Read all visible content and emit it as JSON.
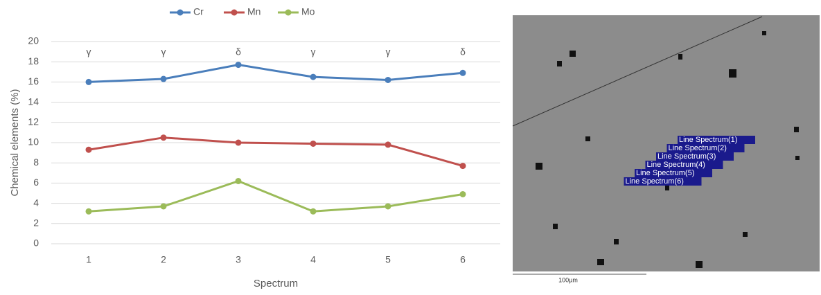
{
  "chart_data": {
    "type": "line",
    "ylabel": "Chemical elements (%)",
    "xlabel": "Spectrum",
    "categories": [
      "1",
      "2",
      "3",
      "4",
      "5",
      "6"
    ],
    "annotations": [
      "γ",
      "γ",
      "δ",
      "γ",
      "γ",
      "δ"
    ],
    "series": [
      {
        "name": "Cr",
        "color": "#4a7ebb",
        "values": [
          16.0,
          16.3,
          17.7,
          16.5,
          16.2,
          16.9
        ]
      },
      {
        "name": "Mn",
        "color": "#c0504d",
        "values": [
          9.3,
          10.5,
          10.0,
          9.9,
          9.8,
          7.7
        ]
      },
      {
        "name": "Mo",
        "color": "#9bbb59",
        "values": [
          3.2,
          3.7,
          6.2,
          3.2,
          3.7,
          4.9
        ]
      }
    ],
    "ylim": [
      0,
      20
    ],
    "yticks": [
      0,
      2,
      4,
      6,
      8,
      10,
      12,
      14,
      16,
      18,
      20
    ],
    "grid": true,
    "legend": "top"
  },
  "micrograph": {
    "labels": [
      "Line Spectrum(1)",
      "Line Spectrum(2)",
      "Line Spectrum(3)",
      "Line Spectrum(4)",
      "Line Spectrum(5)",
      "Line Spectrum(6)"
    ],
    "scale_bar": "100µm"
  }
}
